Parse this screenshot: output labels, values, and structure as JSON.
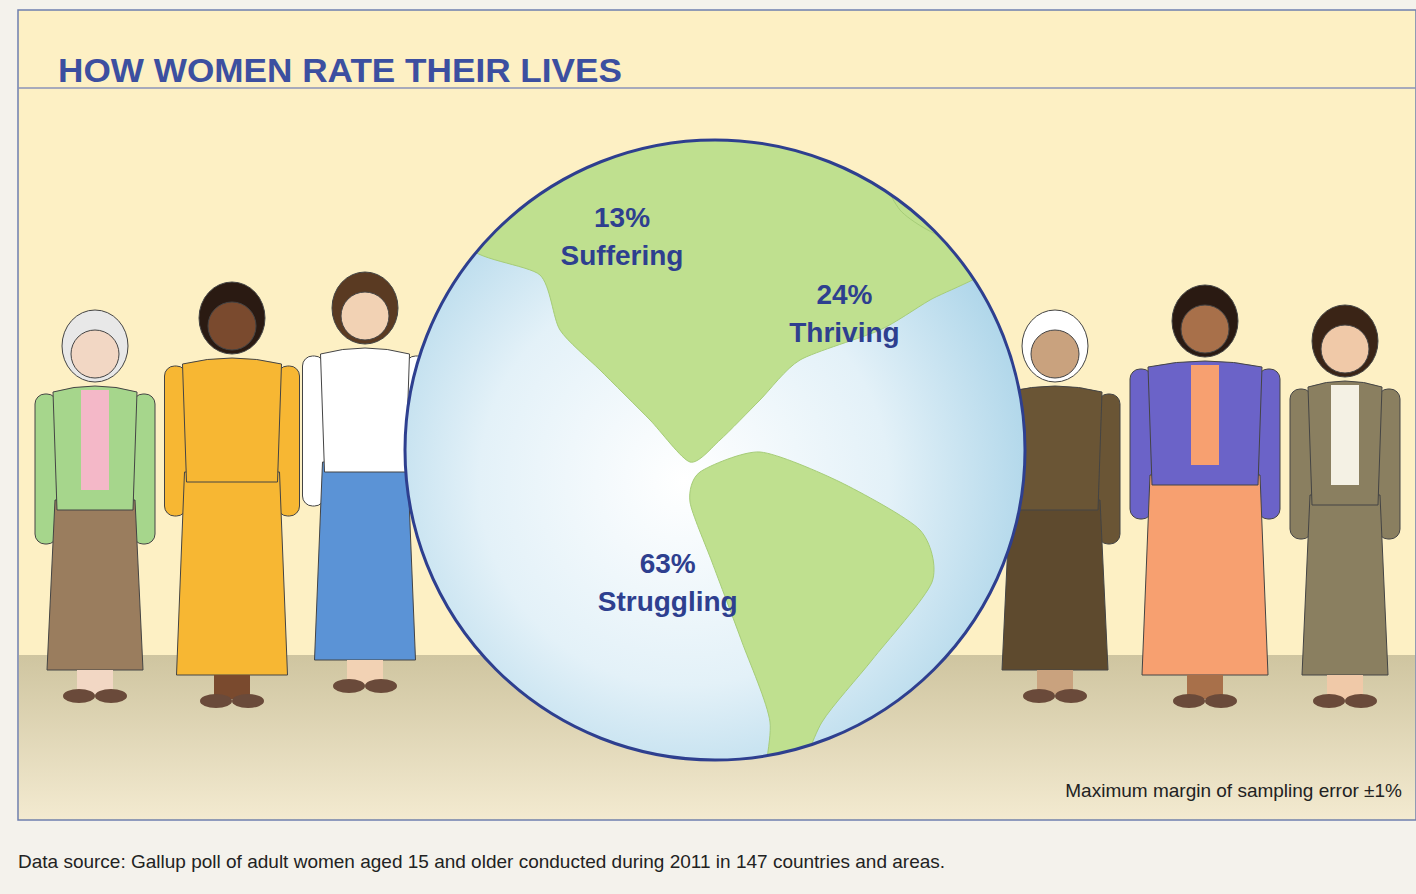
{
  "chart_data": {
    "type": "pie",
    "title": "HOW WOMEN RATE THEIR LIVES",
    "categories": [
      "Thriving",
      "Struggling",
      "Suffering"
    ],
    "values": [
      24,
      63,
      13
    ],
    "value_labels": [
      "24%",
      "63%",
      "13%"
    ],
    "data_labels": true,
    "annotations": [
      "Maximum margin of sampling error ±1%"
    ],
    "source": "Data source: Gallup poll of adult women aged 15 and older conducted during 2011 in 147 countries and areas."
  }
}
